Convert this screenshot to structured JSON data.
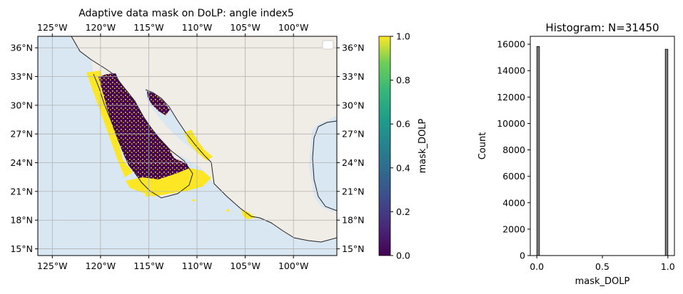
{
  "chart_data": [
    {
      "type": "heatmap",
      "title": "Adaptive data mask on DoLP: angle index5",
      "x_ticks": [
        "125°W",
        "120°W",
        "115°W",
        "110°W",
        "105°W",
        "100°W"
      ],
      "x_tick_values": [
        -125,
        -120,
        -115,
        -110,
        -105,
        -100
      ],
      "y_ticks": [
        "15°N",
        "18°N",
        "21°N",
        "24°N",
        "27°N",
        "30°N",
        "33°N",
        "36°N"
      ],
      "y_tick_values": [
        15,
        18,
        21,
        24,
        27,
        30,
        33,
        36
      ],
      "xlim": [
        -126.5,
        -95.5
      ],
      "ylim": [
        14.3,
        37.2
      ],
      "grid": true,
      "legend": "top-right (empty)",
      "colors": {
        "ocean": "#d9e7f3",
        "land": "#f0ede6",
        "mask_0": "#440154",
        "mask_1": "#fde725",
        "grid": "#b0b0b0"
      },
      "colorbar": {
        "label": "mask_DOLP",
        "ticks": [
          "0.0",
          "0.2",
          "0.4",
          "0.6",
          "0.8",
          "1.0"
        ],
        "tick_values": [
          0,
          0.2,
          0.4,
          0.6,
          0.8,
          1.0
        ],
        "range": [
          0,
          1
        ],
        "colormap": "viridis"
      }
    },
    {
      "type": "bar",
      "title": "Histogram: N=31450",
      "xlabel": "mask_DOLP",
      "ylabel": "Count",
      "x_ticks": [
        "0.0",
        "0.5",
        "1.0"
      ],
      "x_tick_values": [
        0,
        0.5,
        1.0
      ],
      "y_ticks": [
        "0",
        "2000",
        "4000",
        "6000",
        "8000",
        "10000",
        "12000",
        "14000",
        "16000"
      ],
      "y_tick_values": [
        0,
        2000,
        4000,
        6000,
        8000,
        10000,
        12000,
        14000,
        16000
      ],
      "xlim": [
        -0.05,
        1.05
      ],
      "ylim": [
        0,
        16600
      ],
      "bars": [
        {
          "x": 0.0,
          "width": 0.02,
          "value": 15830
        },
        {
          "x": 0.98,
          "width": 0.02,
          "value": 15620
        }
      ],
      "bar_color": "#808080"
    }
  ]
}
